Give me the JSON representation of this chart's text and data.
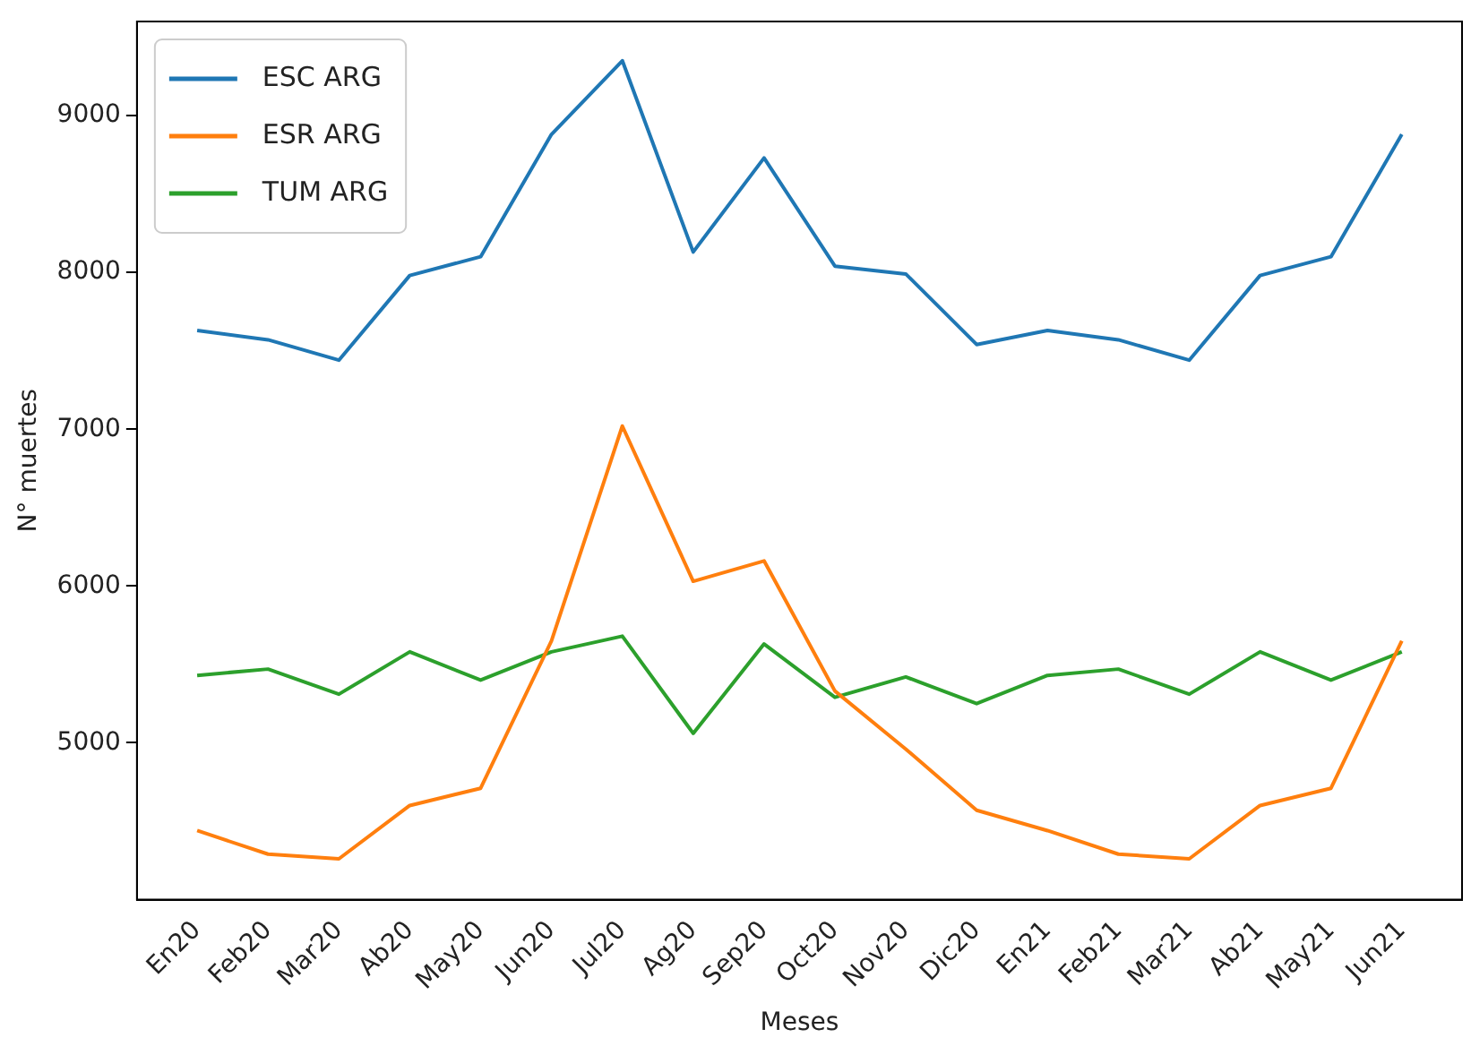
{
  "chart_data": {
    "type": "line",
    "xlabel": "Meses",
    "ylabel": "N° muertes",
    "categories": [
      "En20",
      "Feb20",
      "Mar20",
      "Ab20",
      "May20",
      "Jun20",
      "Jul20",
      "Ag20",
      "Sep20",
      "Oct20",
      "Nov20",
      "Dic20",
      "En21",
      "Feb21",
      "Mar21",
      "Ab21",
      "May21",
      "Jun21"
    ],
    "series": [
      {
        "name": "ESC ARG",
        "color": "#1f77b4",
        "values": [
          7630,
          7570,
          7440,
          7980,
          8100,
          8880,
          9350,
          8130,
          8730,
          8040,
          7990,
          7540,
          7630,
          7570,
          7440,
          7980,
          8100,
          8880
        ]
      },
      {
        "name": "ESR ARG",
        "color": "#ff7f0e",
        "values": [
          4440,
          4290,
          4260,
          4600,
          4710,
          5650,
          7020,
          6030,
          6160,
          5330,
          4960,
          4570,
          4440,
          4290,
          4260,
          4600,
          4710,
          5650
        ]
      },
      {
        "name": "TUM ARG",
        "color": "#2ca02c",
        "values": [
          5430,
          5470,
          5310,
          5580,
          5400,
          5580,
          5680,
          5060,
          5630,
          5290,
          5420,
          5250,
          5430,
          5470,
          5310,
          5580,
          5400,
          5580
        ]
      }
    ],
    "ylim": [
      4000,
      9600
    ],
    "yticks": [
      5000,
      6000,
      7000,
      8000,
      9000
    ],
    "grid": false,
    "legend": "top left",
    "marker": "none",
    "line_style": "solid"
  }
}
